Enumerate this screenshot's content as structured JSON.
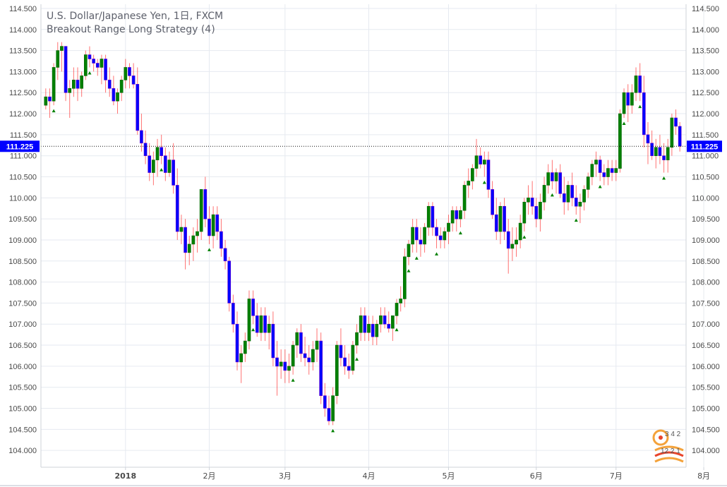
{
  "legend": {
    "title": "U.S. Dollar/Japanese Yen, 1日, FXCM",
    "strategy": "Breakout Range Long Strategy (4)"
  },
  "colors": {
    "up_body": "#008000",
    "down_body": "#0000ff",
    "down_wick": "#ff0000",
    "up_wick": "#ff0000",
    "signal": "#008000",
    "last_price": "#0000ff",
    "grid": "#e6eaf0",
    "axis": "#cfd3da"
  },
  "watermark": {
    "top": "3 4 2",
    "bottom": "12 2 1"
  },
  "chart_data": {
    "type": "candlestick",
    "title": "U.S. Dollar/Japanese Yen, 1日, FXCM",
    "ylim": [
      103.6,
      114.6
    ],
    "y_ticks": [
      "114.500",
      "114.000",
      "113.500",
      "113.000",
      "112.500",
      "112.000",
      "111.500",
      "111.000",
      "110.500",
      "110.000",
      "109.500",
      "109.000",
      "108.500",
      "108.000",
      "107.500",
      "107.000",
      "106.500",
      "106.000",
      "105.500",
      "105.000",
      "104.500",
      "104.000"
    ],
    "x_ticks": [
      {
        "label": "2018",
        "bar": 20,
        "bold": true
      },
      {
        "label": "2月",
        "bar": 41
      },
      {
        "label": "3月",
        "bar": 60
      },
      {
        "label": "4月",
        "bar": 81
      },
      {
        "label": "5月",
        "bar": 101
      },
      {
        "label": "6月",
        "bar": 123
      },
      {
        "label": "7月",
        "bar": 143
      },
      {
        "label": "8月",
        "bar": 165
      }
    ],
    "last_price": 111.225,
    "last_price_label": "111.225",
    "ohlc": [
      [
        112.2,
        112.6,
        112.1,
        112.4
      ],
      [
        112.4,
        112.6,
        111.9,
        112.3
      ],
      [
        112.3,
        113.2,
        112.2,
        113.1
      ],
      [
        113.1,
        113.7,
        112.8,
        113.5
      ],
      [
        113.5,
        113.7,
        113.0,
        113.6
      ],
      [
        113.6,
        113.6,
        112.3,
        112.5
      ],
      [
        112.5,
        112.8,
        111.9,
        112.6
      ],
      [
        112.6,
        113.1,
        112.4,
        112.8
      ],
      [
        112.8,
        113.1,
        112.3,
        112.6
      ],
      [
        112.6,
        113.0,
        112.4,
        112.9
      ],
      [
        112.9,
        113.5,
        112.8,
        113.4
      ],
      [
        113.4,
        113.6,
        113.1,
        113.3
      ],
      [
        113.3,
        113.4,
        113.0,
        113.2
      ],
      [
        113.2,
        113.3,
        112.9,
        113.1
      ],
      [
        113.1,
        113.4,
        112.7,
        113.3
      ],
      [
        113.3,
        113.4,
        112.5,
        112.8
      ],
      [
        112.8,
        113.1,
        112.4,
        112.6
      ],
      [
        112.6,
        112.9,
        112.2,
        112.3
      ],
      [
        112.3,
        112.6,
        112.0,
        112.5
      ],
      [
        112.5,
        112.9,
        112.3,
        112.8
      ],
      [
        112.8,
        113.3,
        112.6,
        113.1
      ],
      [
        113.1,
        113.2,
        112.6,
        112.9
      ],
      [
        112.9,
        113.2,
        112.6,
        112.7
      ],
      [
        112.7,
        113.1,
        111.5,
        111.6
      ],
      [
        111.6,
        112.0,
        111.1,
        111.3
      ],
      [
        111.3,
        111.6,
        110.8,
        111.0
      ],
      [
        111.0,
        111.3,
        110.4,
        110.6
      ],
      [
        110.6,
        111.1,
        110.3,
        110.9
      ],
      [
        110.9,
        111.4,
        110.5,
        111.2
      ],
      [
        111.2,
        111.5,
        110.8,
        111.0
      ],
      [
        111.0,
        111.2,
        110.4,
        110.6
      ],
      [
        110.6,
        111.1,
        110.5,
        110.9
      ],
      [
        110.9,
        111.3,
        110.1,
        110.3
      ],
      [
        110.3,
        110.7,
        109.0,
        109.2
      ],
      [
        109.2,
        109.6,
        108.9,
        109.3
      ],
      [
        109.3,
        109.5,
        108.3,
        108.7
      ],
      [
        108.7,
        109.1,
        108.4,
        108.9
      ],
      [
        108.9,
        109.3,
        108.5,
        109.1
      ],
      [
        109.1,
        109.5,
        108.7,
        109.2
      ],
      [
        109.2,
        110.2,
        109.0,
        110.2
      ],
      [
        110.2,
        110.5,
        109.3,
        109.5
      ],
      [
        109.5,
        109.8,
        108.9,
        109.1
      ],
      [
        109.1,
        109.8,
        108.8,
        109.6
      ],
      [
        109.6,
        109.8,
        109.0,
        109.2
      ],
      [
        109.2,
        109.5,
        108.6,
        108.8
      ],
      [
        108.8,
        109.0,
        108.3,
        108.5
      ],
      [
        108.5,
        108.6,
        107.3,
        107.5
      ],
      [
        107.5,
        107.7,
        106.8,
        107.0
      ],
      [
        107.0,
        107.3,
        105.9,
        106.1
      ],
      [
        106.1,
        106.5,
        105.6,
        106.3
      ],
      [
        106.3,
        106.8,
        106.1,
        106.6
      ],
      [
        106.6,
        107.8,
        106.4,
        107.6
      ],
      [
        107.6,
        107.8,
        107.0,
        107.2
      ],
      [
        107.2,
        107.5,
        106.7,
        106.8
      ],
      [
        106.8,
        107.4,
        106.6,
        107.2
      ],
      [
        107.2,
        107.4,
        106.6,
        106.8
      ],
      [
        106.8,
        107.2,
        106.4,
        107.0
      ],
      [
        107.0,
        107.3,
        106.0,
        106.2
      ],
      [
        106.2,
        106.6,
        105.3,
        106.0
      ],
      [
        106.0,
        106.4,
        105.7,
        106.1
      ],
      [
        106.1,
        106.4,
        105.6,
        105.9
      ],
      [
        105.9,
        106.3,
        105.6,
        106.0
      ],
      [
        106.0,
        106.6,
        105.8,
        106.5
      ],
      [
        106.5,
        106.9,
        106.2,
        106.8
      ],
      [
        106.8,
        107.0,
        106.1,
        106.3
      ],
      [
        106.3,
        106.7,
        106.0,
        106.2
      ],
      [
        106.2,
        106.5,
        105.8,
        106.1
      ],
      [
        106.1,
        106.6,
        105.9,
        106.4
      ],
      [
        106.4,
        106.9,
        106.1,
        106.6
      ],
      [
        106.6,
        106.8,
        105.1,
        105.3
      ],
      [
        105.3,
        105.6,
        104.8,
        105.0
      ],
      [
        105.0,
        105.3,
        104.6,
        104.7
      ],
      [
        104.7,
        105.5,
        104.6,
        105.3
      ],
      [
        105.3,
        106.6,
        105.1,
        106.5
      ],
      [
        106.5,
        106.9,
        106.0,
        106.2
      ],
      [
        106.2,
        106.5,
        105.8,
        106.0
      ],
      [
        106.0,
        106.3,
        105.7,
        105.9
      ],
      [
        105.9,
        106.6,
        105.8,
        106.5
      ],
      [
        106.5,
        107.0,
        106.3,
        106.8
      ],
      [
        106.8,
        107.4,
        106.6,
        107.2
      ],
      [
        107.2,
        107.4,
        106.6,
        106.8
      ],
      [
        106.8,
        107.2,
        106.6,
        107.0
      ],
      [
        107.0,
        107.2,
        106.5,
        106.7
      ],
      [
        106.7,
        107.1,
        106.5,
        107.0
      ],
      [
        107.0,
        107.4,
        106.8,
        107.2
      ],
      [
        107.2,
        107.4,
        106.9,
        107.0
      ],
      [
        107.0,
        107.3,
        106.8,
        106.9
      ],
      [
        106.9,
        107.2,
        106.6,
        107.2
      ],
      [
        107.2,
        107.6,
        107.0,
        107.5
      ],
      [
        107.5,
        107.9,
        107.3,
        107.6
      ],
      [
        107.6,
        108.8,
        107.4,
        108.6
      ],
      [
        108.6,
        109.0,
        108.4,
        108.9
      ],
      [
        108.9,
        109.5,
        108.7,
        109.3
      ],
      [
        109.3,
        109.5,
        108.7,
        109.0
      ],
      [
        109.0,
        109.3,
        108.6,
        108.9
      ],
      [
        108.9,
        109.4,
        108.7,
        109.3
      ],
      [
        109.3,
        109.9,
        109.1,
        109.8
      ],
      [
        109.8,
        109.9,
        109.1,
        109.3
      ],
      [
        109.3,
        109.5,
        108.8,
        109.1
      ],
      [
        109.1,
        109.3,
        108.8,
        109.0
      ],
      [
        109.0,
        109.3,
        108.8,
        109.2
      ],
      [
        109.2,
        109.6,
        108.9,
        109.4
      ],
      [
        109.4,
        109.8,
        109.2,
        109.7
      ],
      [
        109.7,
        109.8,
        109.2,
        109.5
      ],
      [
        109.5,
        109.8,
        109.3,
        109.7
      ],
      [
        109.7,
        110.4,
        109.5,
        110.3
      ],
      [
        110.3,
        110.7,
        110.0,
        110.4
      ],
      [
        110.4,
        110.8,
        110.2,
        110.7
      ],
      [
        110.7,
        111.4,
        110.5,
        111.0
      ],
      [
        111.0,
        111.2,
        110.7,
        110.8
      ],
      [
        110.8,
        111.1,
        110.5,
        110.9
      ],
      [
        110.9,
        111.1,
        110.0,
        110.2
      ],
      [
        110.2,
        110.4,
        109.5,
        109.6
      ],
      [
        109.6,
        110.0,
        109.0,
        109.2
      ],
      [
        109.2,
        109.9,
        108.9,
        109.8
      ],
      [
        109.8,
        110.0,
        109.0,
        109.2
      ],
      [
        109.2,
        109.5,
        108.2,
        108.8
      ],
      [
        108.8,
        109.3,
        108.5,
        108.9
      ],
      [
        108.9,
        109.3,
        108.6,
        109.0
      ],
      [
        109.0,
        109.6,
        108.8,
        109.4
      ],
      [
        109.4,
        110.0,
        109.2,
        109.9
      ],
      [
        109.9,
        110.3,
        109.6,
        110.0
      ],
      [
        110.0,
        110.4,
        109.6,
        109.8
      ],
      [
        109.8,
        110.0,
        109.3,
        109.5
      ],
      [
        109.5,
        110.1,
        109.2,
        109.9
      ],
      [
        109.9,
        110.5,
        109.7,
        110.3
      ],
      [
        110.3,
        110.8,
        110.1,
        110.6
      ],
      [
        110.6,
        110.9,
        110.2,
        110.4
      ],
      [
        110.4,
        110.7,
        110.1,
        110.6
      ],
      [
        110.6,
        110.8,
        110.0,
        110.1
      ],
      [
        110.1,
        110.5,
        109.6,
        109.9
      ],
      [
        109.9,
        110.4,
        109.7,
        110.3
      ],
      [
        110.3,
        110.6,
        109.8,
        110.0
      ],
      [
        110.0,
        110.3,
        109.6,
        109.8
      ],
      [
        109.8,
        110.1,
        109.4,
        109.9
      ],
      [
        109.9,
        110.3,
        109.7,
        110.2
      ],
      [
        110.2,
        110.6,
        110.0,
        110.5
      ],
      [
        110.5,
        110.9,
        110.3,
        110.8
      ],
      [
        110.8,
        111.1,
        110.5,
        110.9
      ],
      [
        110.9,
        111.0,
        110.4,
        110.6
      ],
      [
        110.6,
        110.8,
        110.3,
        110.5
      ],
      [
        110.5,
        110.9,
        110.3,
        110.7
      ],
      [
        110.7,
        110.9,
        110.4,
        110.6
      ],
      [
        110.6,
        110.9,
        110.4,
        110.7
      ],
      [
        110.7,
        112.1,
        110.6,
        112.0
      ],
      [
        112.0,
        112.6,
        111.9,
        112.5
      ],
      [
        112.5,
        112.7,
        111.8,
        112.2
      ],
      [
        112.2,
        112.7,
        112.0,
        112.5
      ],
      [
        112.5,
        113.1,
        112.3,
        112.9
      ],
      [
        112.9,
        113.2,
        112.3,
        112.5
      ],
      [
        112.5,
        112.9,
        111.2,
        111.5
      ],
      [
        111.5,
        111.8,
        110.8,
        111.3
      ],
      [
        111.3,
        111.6,
        110.9,
        111.0
      ],
      [
        111.0,
        111.4,
        110.7,
        111.2
      ],
      [
        111.2,
        111.5,
        110.8,
        111.0
      ],
      [
        111.0,
        111.3,
        110.6,
        110.9
      ],
      [
        110.9,
        111.4,
        110.6,
        111.2
      ],
      [
        111.2,
        112.0,
        111.0,
        111.9
      ],
      [
        111.9,
        112.1,
        111.5,
        111.7
      ],
      [
        111.7,
        111.8,
        111.1,
        111.225
      ]
    ],
    "signals": [
      2,
      11,
      29,
      41,
      52,
      62,
      72,
      78,
      88,
      91,
      93,
      98,
      104,
      110,
      120,
      127,
      133,
      139,
      145,
      149,
      155,
      162
    ]
  }
}
